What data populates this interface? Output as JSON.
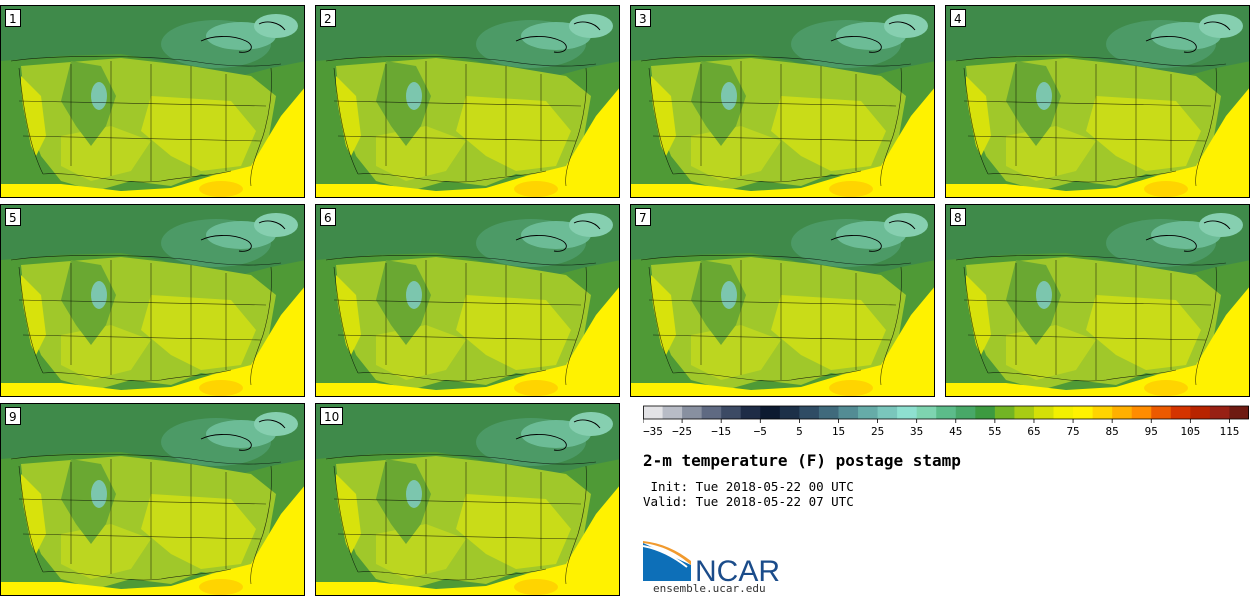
{
  "panels": [
    {
      "label": "1"
    },
    {
      "label": "2"
    },
    {
      "label": "3"
    },
    {
      "label": "4"
    },
    {
      "label": "5"
    },
    {
      "label": "6"
    },
    {
      "label": "7"
    },
    {
      "label": "8"
    },
    {
      "label": "9"
    },
    {
      "label": "10"
    }
  ],
  "colorbar": {
    "levels": [
      -35,
      -30,
      -25,
      -20,
      -15,
      -10,
      -5,
      0,
      5,
      10,
      15,
      20,
      25,
      30,
      35,
      40,
      45,
      50,
      55,
      60,
      65,
      70,
      75,
      80,
      85,
      90,
      95,
      100,
      105,
      110,
      115,
      120
    ],
    "tick_labels": [
      "−35",
      "−25",
      "−15",
      "−5",
      "5",
      "15",
      "25",
      "35",
      "45",
      "55",
      "65",
      "75",
      "85",
      "95",
      "105",
      "115"
    ],
    "colors": [
      "#e3e3e6",
      "#b8bcc6",
      "#8890a0",
      "#5f6a82",
      "#3c4a64",
      "#1e2c46",
      "#0d1a30",
      "#1c3048",
      "#2f4c64",
      "#406a7c",
      "#538c94",
      "#66aca8",
      "#7ac6bc",
      "#8ee0d0",
      "#7ed4b0",
      "#5cbc8a",
      "#48a868",
      "#3c9a40",
      "#72b424",
      "#a8cc14",
      "#d4e008",
      "#f2f000",
      "#fff200",
      "#ffd400",
      "#ffb000",
      "#ff8c00",
      "#ec5a00",
      "#d43400",
      "#b82400",
      "#982014",
      "#6e1a12"
    ]
  },
  "title": "2-m temperature (F) postage stamp",
  "init": " Init: Tue 2018-05-22 00 UTC",
  "valid": "Valid: Tue 2018-05-22 07 UTC",
  "logo_text": "NCAR",
  "site": "ensemble.ucar.edu"
}
